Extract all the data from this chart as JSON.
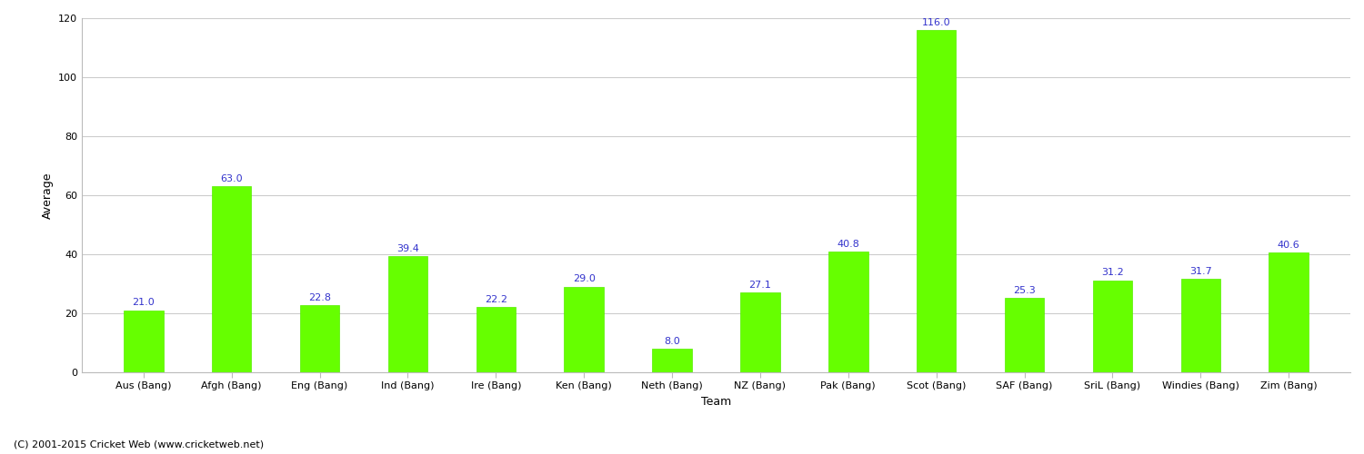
{
  "categories": [
    "Aus (Bang)",
    "Afgh (Bang)",
    "Eng (Bang)",
    "Ind (Bang)",
    "Ire (Bang)",
    "Ken (Bang)",
    "Neth (Bang)",
    "NZ (Bang)",
    "Pak (Bang)",
    "Scot (Bang)",
    "SAF (Bang)",
    "SriL (Bang)",
    "Windies (Bang)",
    "Zim (Bang)"
  ],
  "values": [
    21.0,
    63.0,
    22.8,
    39.4,
    22.2,
    29.0,
    8.0,
    27.1,
    40.8,
    116.0,
    25.3,
    31.2,
    31.7,
    40.6
  ],
  "bar_color": "#66ff00",
  "bar_edge_color": "#55ee00",
  "label_color": "#3333cc",
  "xlabel": "Team",
  "ylabel": "Average",
  "ylim": [
    0,
    120
  ],
  "yticks": [
    0,
    20,
    40,
    60,
    80,
    100,
    120
  ],
  "background_color": "#ffffff",
  "grid_color": "#cccccc",
  "footer_text": "(C) 2001-2015 Cricket Web (www.cricketweb.net)",
  "label_fontsize": 8,
  "axis_label_fontsize": 9,
  "tick_fontsize": 8,
  "footer_fontsize": 8,
  "bar_width": 0.45
}
